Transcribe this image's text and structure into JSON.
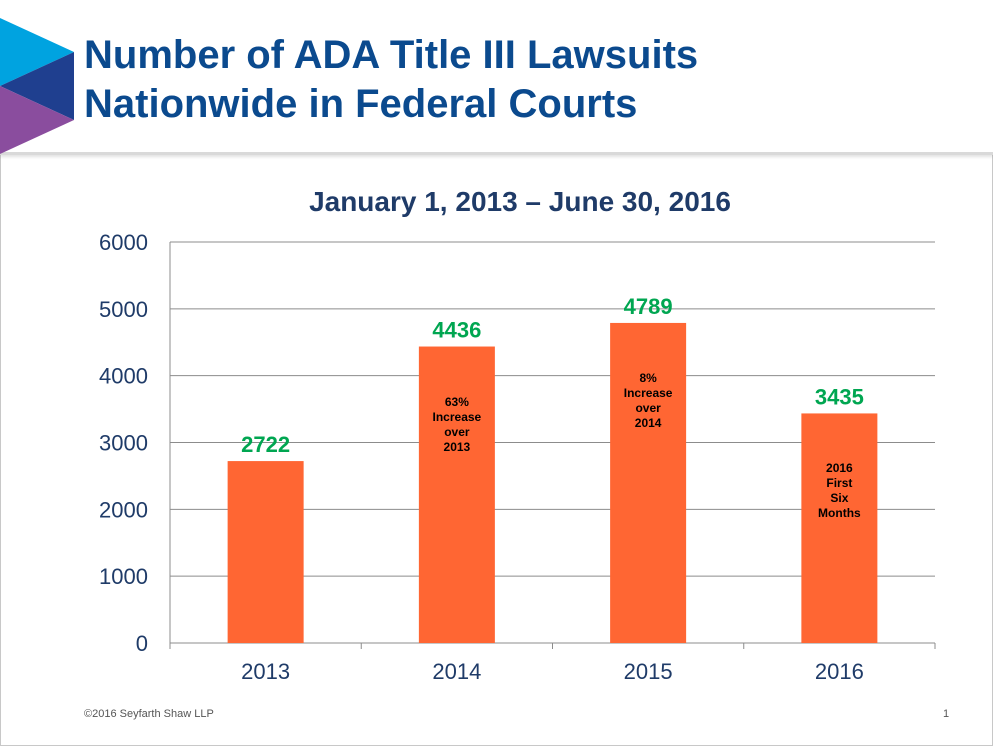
{
  "slide": {
    "title_line1": "Number of ADA Title III Lawsuits",
    "title_line2": "Nationwide in Federal Courts",
    "footer": "©2016 Seyfarth  Shaw LLP",
    "page_number": "1"
  },
  "colors": {
    "title": "#0b4a8e",
    "bar": "#ff6633",
    "data_label": "#00a651",
    "axis_text": "#1f3b68",
    "gridline": "#8c8c8c"
  },
  "chart_data": {
    "type": "bar",
    "title": "January 1, 2013 – June 30, 2016",
    "xlabel": "",
    "ylabel": "",
    "categories": [
      "2013",
      "2014",
      "2015",
      "2016"
    ],
    "values": [
      2722,
      4436,
      4789,
      3435
    ],
    "data_labels": [
      "2722",
      "4436",
      "4789",
      "3435"
    ],
    "bar_notes": [
      [],
      [
        "63%",
        "Increase",
        "over",
        "2013"
      ],
      [
        "8%",
        "Increase",
        "over",
        "2014"
      ],
      [
        "2016",
        "First",
        "Six",
        "Months"
      ]
    ],
    "ylim": [
      0,
      6000
    ],
    "yticks": [
      0,
      1000,
      2000,
      3000,
      4000,
      5000,
      6000
    ],
    "grid": true,
    "legend": "none"
  }
}
